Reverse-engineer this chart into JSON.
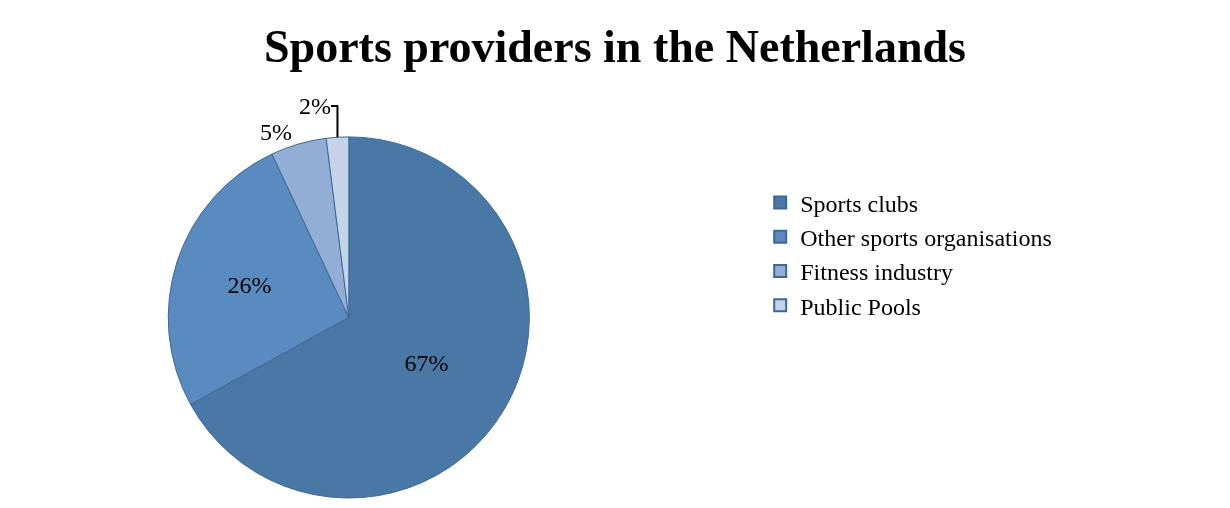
{
  "chart_data": {
    "type": "pie",
    "title": "Sports providers in the Netherlands",
    "categories": [
      "Sports clubs",
      "Other sports organisations",
      "Fitness industry",
      "Public Pools"
    ],
    "values": [
      67,
      26,
      5,
      2
    ],
    "value_labels": [
      "67%",
      "26%",
      "5%",
      "2%"
    ],
    "colors": [
      "#4a78a6",
      "#5a8bc0",
      "#92aed5",
      "#c5d3e8"
    ],
    "legend": "right"
  }
}
